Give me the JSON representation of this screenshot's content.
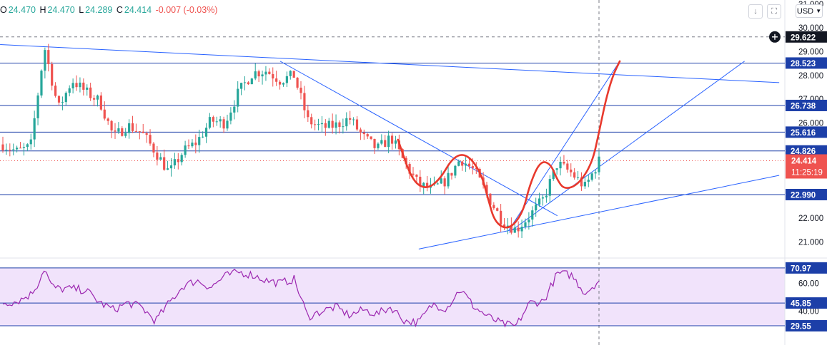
{
  "ohlc": {
    "open_label": "O",
    "open": "24.470",
    "high_label": "H",
    "high": "24.470",
    "low_label": "L",
    "low": "24.289",
    "close_label": "C",
    "close": "24.414",
    "change": "-0.007 (-0.03%)"
  },
  "toolbar": {
    "currency": "USD",
    "download_icon": "arrow-down-icon",
    "fullscreen_icon": "fullscreen-icon"
  },
  "price_axis": {
    "ticks": [
      "31.000",
      "30.000",
      "29.000",
      "28.000",
      "27.000",
      "26.000",
      "22.000",
      "21.000"
    ],
    "crosshair_label": "29.622",
    "levels": [
      "28.523",
      "26.738",
      "25.616",
      "24.826",
      "22.990"
    ],
    "current_price": "24.414",
    "countdown": "11:25:19"
  },
  "rsi_axis": {
    "ticks": [
      "60.00",
      "40.00"
    ],
    "levels": [
      "70.97",
      "45.85",
      "29.55"
    ]
  },
  "colors": {
    "up": "#26a69a",
    "down": "#ef5350",
    "trendline": "#2962ff",
    "drawing": "#e8392d",
    "rsi_line": "#9c27b0",
    "rsi_band": "#f1e3fb"
  },
  "chart_data": {
    "type": "candlestick",
    "price_range": [
      20.5,
      31.1
    ],
    "horizontal_levels": [
      28.523,
      26.738,
      25.616,
      24.826,
      22.99
    ],
    "last_price": 24.414,
    "crosshair_price": 29.622,
    "series": [
      {
        "name": "",
        "kind": "candles",
        "anchors": [
          [
            0,
            25.1
          ],
          [
            2,
            24.8
          ],
          [
            4,
            25.0
          ],
          [
            6,
            29.2
          ],
          [
            8,
            26.6
          ],
          [
            10,
            27.8
          ],
          [
            12,
            27.3
          ],
          [
            14,
            26.9
          ],
          [
            16,
            25.4
          ],
          [
            18,
            25.9
          ],
          [
            20,
            25.6
          ],
          [
            22,
            24.8
          ],
          [
            24,
            23.9
          ],
          [
            26,
            24.8
          ],
          [
            28,
            25.2
          ],
          [
            30,
            26.1
          ],
          [
            32,
            26.0
          ],
          [
            34,
            27.3
          ],
          [
            36,
            28.1
          ],
          [
            38,
            28.2
          ],
          [
            40,
            27.8
          ],
          [
            42,
            28.0
          ],
          [
            44,
            26.1
          ],
          [
            46,
            25.8
          ],
          [
            48,
            25.9
          ],
          [
            50,
            26.2
          ],
          [
            52,
            25.4
          ],
          [
            54,
            24.9
          ],
          [
            56,
            25.4
          ],
          [
            58,
            24.3
          ],
          [
            60,
            23.4
          ],
          [
            62,
            23.2
          ],
          [
            64,
            23.6
          ],
          [
            66,
            24.5
          ],
          [
            68,
            24.0
          ],
          [
            70,
            22.9
          ],
          [
            72,
            21.9
          ],
          [
            74,
            21.5
          ],
          [
            76,
            22.1
          ],
          [
            78,
            22.8
          ],
          [
            80,
            24.3
          ],
          [
            82,
            23.9
          ],
          [
            84,
            23.3
          ],
          [
            86,
            24.4
          ]
        ]
      }
    ],
    "rsi": {
      "range": [
        24,
        76
      ],
      "levels": [
        70.97,
        45.85,
        29.55
      ],
      "anchors": [
        [
          0,
          46
        ],
        [
          2,
          47
        ],
        [
          4,
          52
        ],
        [
          5,
          59
        ],
        [
          6,
          71
        ],
        [
          7,
          58
        ],
        [
          8,
          56
        ],
        [
          10,
          56
        ],
        [
          12,
          55
        ],
        [
          14,
          46
        ],
        [
          16,
          41
        ],
        [
          18,
          46
        ],
        [
          20,
          43
        ],
        [
          22,
          33
        ],
        [
          24,
          46
        ],
        [
          26,
          58
        ],
        [
          28,
          62
        ],
        [
          30,
          57
        ],
        [
          32,
          65
        ],
        [
          34,
          68
        ],
        [
          36,
          66
        ],
        [
          38,
          62
        ],
        [
          40,
          60
        ],
        [
          42,
          63
        ],
        [
          44,
          36
        ],
        [
          46,
          40
        ],
        [
          48,
          43
        ],
        [
          50,
          37
        ],
        [
          52,
          41
        ],
        [
          54,
          38
        ],
        [
          56,
          43
        ],
        [
          58,
          33
        ],
        [
          60,
          32
        ],
        [
          62,
          45
        ],
        [
          64,
          42
        ],
        [
          66,
          56
        ],
        [
          68,
          43
        ],
        [
          70,
          36
        ],
        [
          72,
          31
        ],
        [
          74,
          29
        ],
        [
          76,
          46
        ],
        [
          78,
          47
        ],
        [
          80,
          67
        ],
        [
          82,
          66
        ],
        [
          84,
          53
        ],
        [
          86,
          62
        ]
      ]
    }
  }
}
